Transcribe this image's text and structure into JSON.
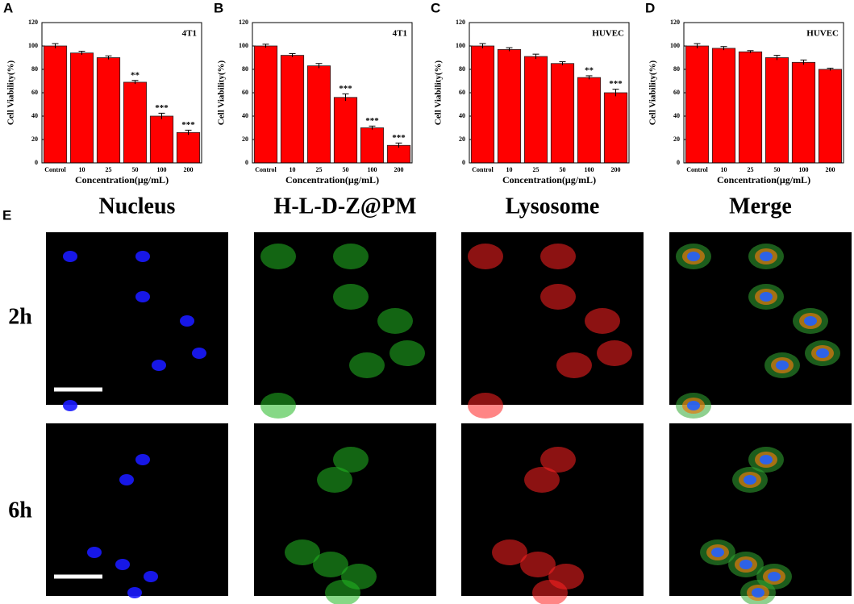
{
  "chart_data": [
    {
      "type": "bar",
      "panel": "A",
      "label": "4T1",
      "ylabel": "Cell Viability(%)",
      "xlabel": "Concentration(μg/mL)",
      "categories": [
        "Control",
        "10",
        "25",
        "50",
        "100",
        "200"
      ],
      "values": [
        100,
        94,
        90,
        69,
        40,
        26
      ],
      "errors": [
        2,
        1.5,
        1.5,
        1.5,
        2.5,
        2
      ],
      "annotations": [
        null,
        null,
        null,
        "**",
        "***",
        "***"
      ],
      "color": "#ff0000",
      "ylim": [
        0,
        120
      ],
      "yticks": [
        0,
        20,
        40,
        60,
        80,
        100,
        120
      ]
    },
    {
      "type": "bar",
      "panel": "B",
      "label": "4T1",
      "ylabel": "Cell Viability(%)",
      "xlabel": "Concentration(μg/mL)",
      "categories": [
        "Control",
        "10",
        "25",
        "50",
        "100",
        "200"
      ],
      "values": [
        100,
        92,
        83,
        56,
        30,
        15
      ],
      "errors": [
        1.5,
        1.5,
        2,
        3,
        1.5,
        2
      ],
      "annotations": [
        null,
        null,
        null,
        "***",
        "***",
        "***"
      ],
      "color": "#ff0000",
      "ylim": [
        0,
        120
      ],
      "yticks": [
        0,
        20,
        40,
        60,
        80,
        100,
        120
      ]
    },
    {
      "type": "bar",
      "panel": "C",
      "label": "HUVEC",
      "ylabel": "Cell Viability(%)",
      "xlabel": "Concentration(μg/mL)",
      "categories": [
        "Control",
        "10",
        "25",
        "50",
        "100",
        "200"
      ],
      "values": [
        100,
        97,
        91,
        85,
        73,
        60
      ],
      "errors": [
        2,
        1.5,
        2,
        1.5,
        1.5,
        3
      ],
      "annotations": [
        null,
        null,
        null,
        null,
        "**",
        "***"
      ],
      "color": "#ff0000",
      "ylim": [
        0,
        120
      ],
      "yticks": [
        0,
        20,
        40,
        60,
        80,
        100,
        120
      ]
    },
    {
      "type": "bar",
      "panel": "D",
      "label": "HUVEC",
      "ylabel": "Cell Viability(%)",
      "xlabel": "Concentration(μg/mL)",
      "categories": [
        "Control",
        "10",
        "25",
        "50",
        "100",
        "200"
      ],
      "values": [
        100,
        98,
        95,
        90,
        86,
        80
      ],
      "errors": [
        2,
        1.5,
        1,
        2,
        2,
        1
      ],
      "annotations": [
        null,
        null,
        null,
        null,
        null,
        null
      ],
      "color": "#ff0000",
      "ylim": [
        0,
        120
      ],
      "yticks": [
        0,
        20,
        40,
        60,
        80,
        100,
        120
      ]
    }
  ],
  "panel_e": {
    "label": "E",
    "columns": [
      "Nucleus",
      "H-L-D-Z@PM",
      "Lysosome",
      "Merge"
    ],
    "rows": [
      "2h",
      "6h"
    ]
  }
}
